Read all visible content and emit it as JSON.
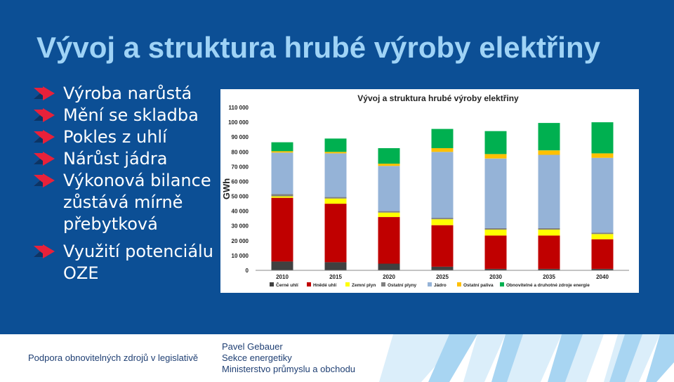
{
  "slide": {
    "title": "Vývoj a struktura hrubé výroby elektřiny",
    "bullets": [
      "Výroba narůstá",
      "Mění se skladba",
      "Pokles z uhlí",
      "Nárůst jádra",
      "Výkonová bilance zůstává mírně přebytková",
      "Využití potenciálu OZE"
    ]
  },
  "footer": {
    "left": "Podpora obnovitelných zdrojů v legislativě",
    "author": "Pavel Gebauer",
    "department": "Sekce energetiky",
    "ministry": "Ministerstvo průmyslu a obchodu"
  },
  "colors": {
    "slide_background": "#0c4f95",
    "title": "#9fd3f6",
    "bullet_arrow": "#e8213a"
  },
  "chart_data": {
    "type": "stacked-bar",
    "title": "Vývoj a struktura hrubé výroby elektřiny",
    "ylabel": "GWh",
    "ylim": [
      0,
      110000
    ],
    "yticks": [
      "0",
      "10 000",
      "20 000",
      "30 000",
      "40 000",
      "50 000",
      "60 000",
      "70 000",
      "80 000",
      "90 000",
      "100 000",
      "110 000"
    ],
    "categories": [
      "2010",
      "2015",
      "2020",
      "2025",
      "2030",
      "2035",
      "2040"
    ],
    "legend_position": "bottom",
    "grid": false,
    "series": [
      {
        "name": "Černé uhlí",
        "color": "#404040",
        "values": [
          6000,
          5500,
          4500,
          2500,
          1000,
          1000,
          1000
        ]
      },
      {
        "name": "Hnědé uhlí",
        "color": "#c00000",
        "values": [
          43000,
          39500,
          31500,
          28000,
          22500,
          22500,
          20000
        ]
      },
      {
        "name": "Zemní plyn",
        "color": "#ffff00",
        "values": [
          1000,
          3500,
          3000,
          4000,
          4000,
          4000,
          3500
        ]
      },
      {
        "name": "Ostatní plyny",
        "color": "#808080",
        "values": [
          1500,
          1000,
          1000,
          1000,
          1000,
          1000,
          1000
        ]
      },
      {
        "name": "Jádro",
        "color": "#95b3d7",
        "values": [
          28000,
          29500,
          30500,
          44500,
          47000,
          49500,
          50500
        ]
      },
      {
        "name": "Ostatní paliva",
        "color": "#ffc000",
        "values": [
          1000,
          1000,
          1500,
          2500,
          3000,
          3000,
          3000
        ]
      },
      {
        "name": "Obnovitelné a druhotné zdroje energie",
        "color": "#00b050",
        "values": [
          6000,
          9000,
          10500,
          13000,
          15500,
          18500,
          21000
        ]
      }
    ]
  }
}
